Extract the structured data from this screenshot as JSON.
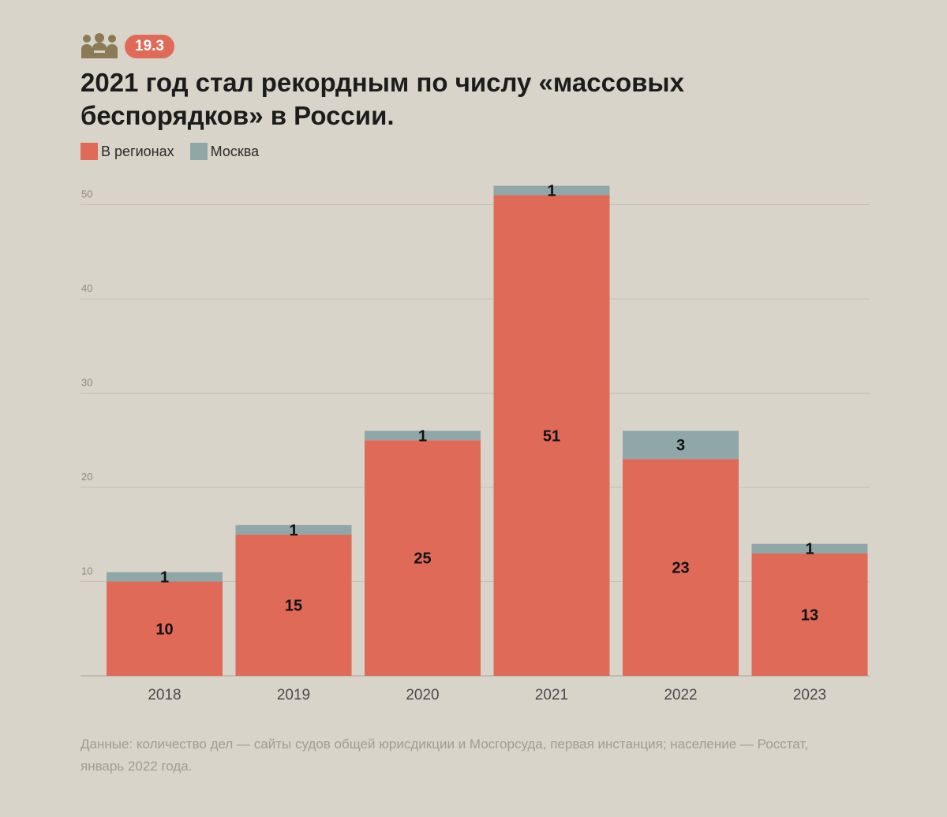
{
  "header": {
    "icon": "people-group-icon",
    "badge": "19.3",
    "title": "2021 год стал рекордным по числу «массовых беспорядков» в России."
  },
  "colors": {
    "background": "#d8d4c9",
    "regions": "#e06a58",
    "moscow": "#8fa7a8",
    "badge": "#e06a58",
    "icon": "#8a7a55",
    "grid": "#c4bfb2",
    "axis_text": "#4a4a4a",
    "footnote": "#a09c91"
  },
  "legend": {
    "regions_label": "В регионах",
    "moscow_label": "Москва"
  },
  "chart_data": {
    "type": "bar",
    "stacked": true,
    "categories": [
      "2018",
      "2019",
      "2020",
      "2021",
      "2022",
      "2023"
    ],
    "series": [
      {
        "name": "В регионах",
        "values": [
          10,
          15,
          25,
          51,
          23,
          13
        ]
      },
      {
        "name": "Москва",
        "values": [
          1,
          1,
          1,
          1,
          3,
          1
        ]
      }
    ],
    "yticks": [
      10,
      20,
      30,
      40,
      50
    ],
    "ylim": [
      0,
      52
    ],
    "grid": true,
    "legend_position": "top-left"
  },
  "footnote": "Данные: количество дел — сайты судов общей юрисдикции и Мосгорсуда, первая инстанция; население — Росстат, январь 2022 года."
}
